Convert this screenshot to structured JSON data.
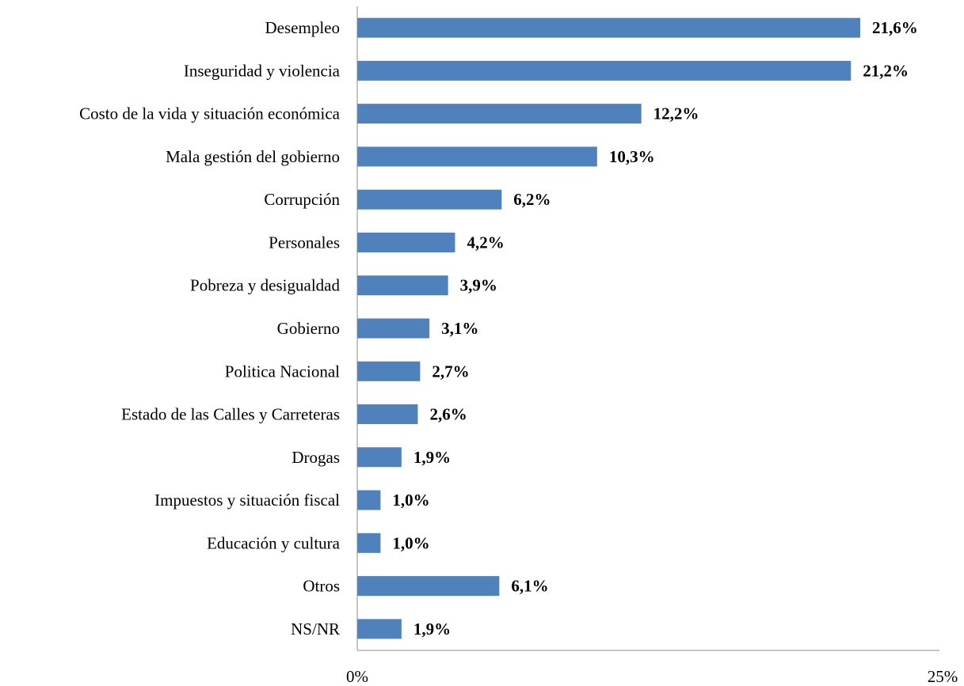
{
  "chart_data": {
    "type": "bar",
    "orientation": "horizontal",
    "categories": [
      "Desempleo",
      "Inseguridad y violencia",
      "Costo de la vida y situación económica",
      "Mala gestión del gobierno",
      "Corrupción",
      "Personales",
      "Pobreza y desigualdad",
      "Gobierno",
      "Politica Nacional",
      "Estado de las Calles y Carreteras",
      "Drogas",
      "Impuestos y situación fiscal",
      "Educación y cultura",
      "Otros",
      "NS/NR"
    ],
    "values": [
      21.6,
      21.2,
      12.2,
      10.3,
      6.2,
      4.2,
      3.9,
      3.1,
      2.7,
      2.6,
      1.9,
      1.0,
      1.0,
      6.1,
      1.9
    ],
    "value_labels": [
      "21,6%",
      "21,2%",
      "12,2%",
      "10,3%",
      "6,2%",
      "4,2%",
      "3,9%",
      "3,1%",
      "2,7%",
      "2,6%",
      "1,9%",
      "1,0%",
      "1,0%",
      "6,1%",
      "1,9%"
    ],
    "x_ticks": [
      "0%",
      "25%"
    ],
    "xlim": [
      0,
      25
    ],
    "bar_color": "#4f81bd",
    "grid": false,
    "legend": "none"
  }
}
